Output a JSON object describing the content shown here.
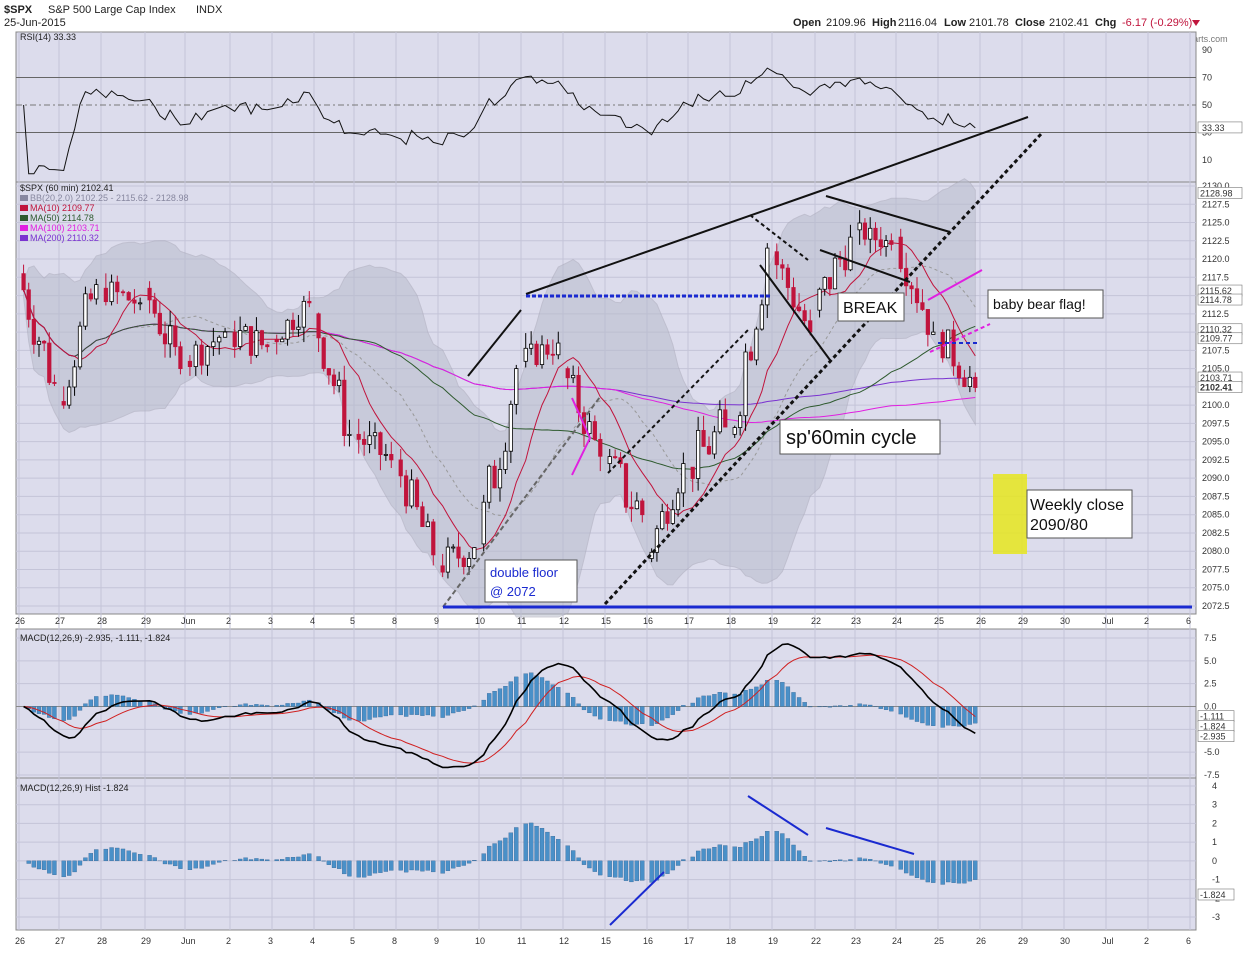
{
  "header": {
    "symbol": "$SPX",
    "name": "S&P 500 Large Cap Index",
    "exchange": "INDX",
    "date": "25-Jun-2015",
    "open_label": "Open",
    "open": "2109.96",
    "high_label": "High",
    "high": "2116.04",
    "low_label": "Low",
    "low": "2101.78",
    "close_label": "Close",
    "close": "2102.41",
    "chg_label": "Chg",
    "chg": "-6.17 (-0.29%)",
    "watermark": "© StockCharts.com"
  },
  "colors": {
    "panel_bg": "#dcdcec",
    "up_candle": "#000000",
    "down_candle": "#c0143c",
    "bb": "#a8a8b8",
    "ma10": "#c0143c",
    "ma50": "#2e5a2e",
    "ma100": "#e020e0",
    "ma200": "#7a32d0",
    "macd_line": "#000000",
    "signal_line": "#d02020",
    "hist": "#4a90c8",
    "annot_blue": "#1a2ad0"
  },
  "rsi": {
    "label": "RSI(14) 33.33",
    "current": "33.33",
    "ticks": [
      "90",
      "70",
      "50",
      "30",
      "10"
    ]
  },
  "price": {
    "label": "$SPX (60 min) 2102.41",
    "legend": [
      {
        "text": "BB(20,2.0) 2102.25 - 2115.62 - 2128.98",
        "color": "#8888a0"
      },
      {
        "text": "MA(10) 2109.77",
        "color": "#c0143c"
      },
      {
        "text": "MA(50) 2114.78",
        "color": "#2e5a2e"
      },
      {
        "text": "MA(100) 2103.71",
        "color": "#e020e0"
      },
      {
        "text": "MA(200) 2110.32",
        "color": "#7a32d0"
      }
    ],
    "ticks": [
      "2130.0",
      "2127.5",
      "2125.0",
      "2122.5",
      "2120.0",
      "2117.5",
      "2115.0",
      "2112.5",
      "2110.0",
      "2107.5",
      "2105.0",
      "2102.5",
      "2100.0",
      "2097.5",
      "2095.0",
      "2092.5",
      "2090.0",
      "2087.5",
      "2085.0",
      "2082.5",
      "2080.0",
      "2077.5",
      "2075.0",
      "2072.5"
    ],
    "right_tags": [
      {
        "text": "2128.98",
        "value": 2128.98
      },
      {
        "text": "2115.62",
        "value": 2115.62
      },
      {
        "text": "2114.78",
        "value": 2114.78
      },
      {
        "text": "2110.32",
        "value": 2110.32
      },
      {
        "text": "2109.77",
        "value": 2109.77
      },
      {
        "text": "2103.71",
        "value": 2103.71
      },
      {
        "text": "2102.41",
        "value": 2102.41
      }
    ]
  },
  "annotations": {
    "double_floor_line1": "double floor",
    "double_floor_line2": "@ 2072",
    "break": "BREAK",
    "cycle": "sp'60min cycle",
    "bear_flag": "baby bear flag!",
    "weekly_line1": "Weekly close",
    "weekly_line2": "2090/80"
  },
  "macd": {
    "label": "MACD(12,26,9) -2.935, -1.111, -1.824",
    "ticks": [
      "7.5",
      "5.0",
      "2.5",
      "0.0",
      "-2.5",
      "-5.0",
      "-7.5"
    ],
    "tags": [
      {
        "text": "-1.111",
        "value": -1.111
      },
      {
        "text": "-1.824",
        "value": -1.824
      },
      {
        "text": "-2.935",
        "value": -2.935
      }
    ]
  },
  "hist": {
    "label": "MACD(12,26,9) Hist -1.824",
    "ticks": [
      "4",
      "3",
      "2",
      "1",
      "0",
      "-1",
      "-2",
      "-3"
    ],
    "tag": "-1.824"
  },
  "x_axis": {
    "labels": [
      "26",
      "27",
      "28",
      "29",
      "Jun",
      "2",
      "3",
      "4",
      "5",
      "8",
      "9",
      "10",
      "11",
      "12",
      "15",
      "16",
      "17",
      "18",
      "19",
      "22",
      "23",
      "24",
      "25",
      "26",
      "29",
      "30",
      "Jul",
      "2",
      "6"
    ]
  },
  "chart_data": {
    "type": "candlestick",
    "interval": "60 min",
    "sessions": [
      {
        "day": "26",
        "open": 2118.0,
        "close": 2103.0,
        "high": 2121.0,
        "low": 2099.0
      },
      {
        "day": "27",
        "open": 2100.5,
        "close": 2116.5,
        "high": 2119.0,
        "low": 2099.5
      },
      {
        "day": "28",
        "open": 2116.0,
        "close": 2114.0,
        "high": 2121.0,
        "low": 2110.5
      },
      {
        "day": "29",
        "open": 2116.0,
        "close": 2105.0,
        "high": 2119.0,
        "low": 2102.5
      },
      {
        "day": "Jun",
        "open": 2106.0,
        "close": 2110.0,
        "high": 2117.0,
        "low": 2104.0
      },
      {
        "day": "2",
        "open": 2110.0,
        "close": 2108.0,
        "high": 2114.0,
        "low": 2100.0
      },
      {
        "day": "3",
        "open": 2109.0,
        "close": 2114.0,
        "high": 2117.0,
        "low": 2106.0
      },
      {
        "day": "4",
        "open": 2112.5,
        "close": 2096.0,
        "high": 2113.0,
        "low": 2094.0
      },
      {
        "day": "5",
        "open": 2096.0,
        "close": 2092.5,
        "high": 2099.5,
        "low": 2086.5
      },
      {
        "day": "8",
        "open": 2092.5,
        "close": 2079.5,
        "high": 2094.0,
        "low": 2077.5
      },
      {
        "day": "9",
        "open": 2078.0,
        "close": 2080.5,
        "high": 2085.0,
        "low": 2072.0
      },
      {
        "day": "10",
        "open": 2081.0,
        "close": 2105.0,
        "high": 2107.0,
        "low": 2080.0
      },
      {
        "day": "11",
        "open": 2106.0,
        "close": 2108.5,
        "high": 2115.5,
        "low": 2105.0
      },
      {
        "day": "12",
        "open": 2105.0,
        "close": 2093.0,
        "high": 2106.0,
        "low": 2090.5
      },
      {
        "day": "15",
        "open": 2092.0,
        "close": 2085.0,
        "high": 2094.0,
        "low": 2072.0
      },
      {
        "day": "16",
        "open": 2079.0,
        "close": 2092.0,
        "high": 2093.5,
        "low": 2078.5
      },
      {
        "day": "17",
        "open": 2091.5,
        "close": 2097.0,
        "high": 2106.0,
        "low": 2086.0
      },
      {
        "day": "18",
        "open": 2096.0,
        "close": 2121.5,
        "high": 2126.0,
        "low": 2095.5
      },
      {
        "day": "19",
        "open": 2121.0,
        "close": 2110.0,
        "high": 2124.0,
        "low": 2109.0
      },
      {
        "day": "22",
        "open": 2113.0,
        "close": 2123.0,
        "high": 2129.0,
        "low": 2111.0
      },
      {
        "day": "23",
        "open": 2124.0,
        "close": 2122.0,
        "high": 2127.0,
        "low": 2119.5
      },
      {
        "day": "24",
        "open": 2123.0,
        "close": 2110.0,
        "high": 2125.0,
        "low": 2108.0
      },
      {
        "day": "25",
        "open": 2109.96,
        "close": 2102.41,
        "high": 2116.04,
        "low": 2101.78
      }
    ],
    "rsi_current": 33.33,
    "macd_current": {
      "macd": -2.935,
      "signal": -1.111,
      "hist": -1.824
    }
  }
}
